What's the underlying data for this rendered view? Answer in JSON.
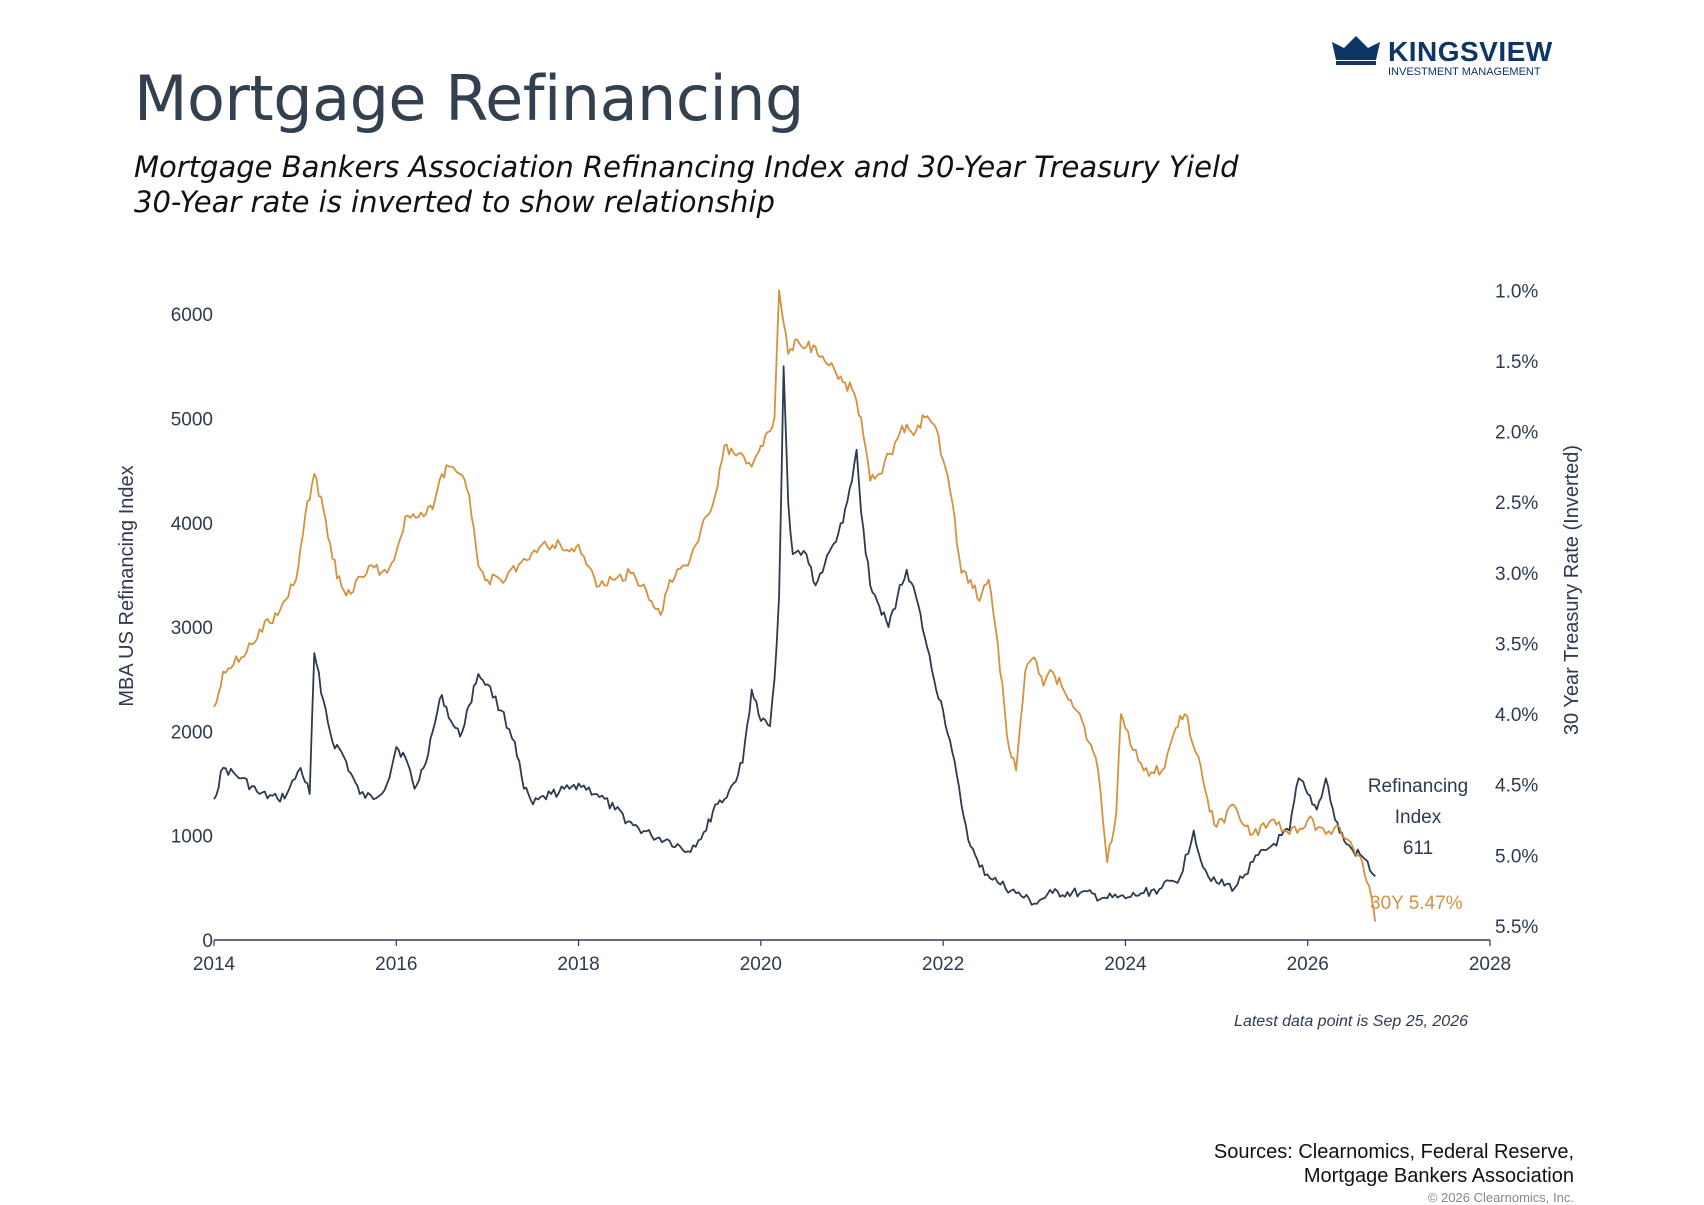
{
  "header": {
    "title": "Mortgage Refinancing",
    "subtitle_line1": "Mortgage Bankers Association Refinancing Index and 30-Year Treasury Yield",
    "subtitle_line2": "30-Year rate is inverted to show relationship"
  },
  "logo": {
    "name": "KINGSVIEW",
    "tagline": "INVESTMENT MANAGEMENT",
    "icon": "crown-icon",
    "color": "#0d3566"
  },
  "footer": {
    "latest": "Latest data point is Sep 25, 2026",
    "sources_line1": "Sources: Clearnomics, Federal Reserve,",
    "sources_line2": "Mortgage Bankers Association",
    "copyright": "© 2026 Clearnomics, Inc."
  },
  "chart_data": {
    "type": "line",
    "title": "Mortgage Refinancing",
    "xlim": [
      2014,
      2028
    ],
    "x_ticks": [
      "2014",
      "2016",
      "2018",
      "2020",
      "2022",
      "2024",
      "2026",
      "2028"
    ],
    "y_left": {
      "label": "MBA US Refinancing Index",
      "range": [
        0,
        6500
      ],
      "ticks": [
        "0",
        "1000",
        "2000",
        "3000",
        "4000",
        "5000",
        "6000"
      ]
    },
    "y_right": {
      "label": "30 Year Treasury Rate (Inverted)",
      "range": [
        0.8,
        5.6
      ],
      "inverted": true,
      "ticks": [
        "1.0%",
        "1.5%",
        "2.0%",
        "2.5%",
        "3.0%",
        "3.5%",
        "4.0%",
        "4.5%",
        "5.0%",
        "5.5%"
      ]
    },
    "grid": false,
    "series": [
      {
        "name": "Refinancing Index",
        "axis": "left",
        "color": "#2e3b4e",
        "end_label_lines": [
          "Refinancing",
          "Index",
          "611"
        ],
        "points": [
          [
            2014.0,
            1350
          ],
          [
            2014.1,
            1650
          ],
          [
            2014.3,
            1550
          ],
          [
            2014.5,
            1400
          ],
          [
            2014.7,
            1350
          ],
          [
            2014.8,
            1400
          ],
          [
            2014.95,
            1650
          ],
          [
            2015.05,
            1400
          ],
          [
            2015.1,
            2750
          ],
          [
            2015.2,
            2300
          ],
          [
            2015.3,
            1900
          ],
          [
            2015.4,
            1800
          ],
          [
            2015.5,
            1600
          ],
          [
            2015.6,
            1400
          ],
          [
            2015.75,
            1350
          ],
          [
            2015.9,
            1500
          ],
          [
            2016.0,
            1850
          ],
          [
            2016.1,
            1750
          ],
          [
            2016.2,
            1450
          ],
          [
            2016.3,
            1650
          ],
          [
            2016.4,
            2000
          ],
          [
            2016.5,
            2350
          ],
          [
            2016.6,
            2100
          ],
          [
            2016.7,
            1950
          ],
          [
            2016.8,
            2250
          ],
          [
            2016.9,
            2550
          ],
          [
            2017.0,
            2450
          ],
          [
            2017.15,
            2200
          ],
          [
            2017.3,
            1900
          ],
          [
            2017.4,
            1450
          ],
          [
            2017.5,
            1300
          ],
          [
            2017.7,
            1400
          ],
          [
            2017.9,
            1450
          ],
          [
            2018.0,
            1500
          ],
          [
            2018.2,
            1400
          ],
          [
            2018.4,
            1250
          ],
          [
            2018.6,
            1100
          ],
          [
            2018.8,
            1000
          ],
          [
            2019.0,
            950
          ],
          [
            2019.2,
            850
          ],
          [
            2019.4,
            1050
          ],
          [
            2019.5,
            1300
          ],
          [
            2019.6,
            1350
          ],
          [
            2019.7,
            1500
          ],
          [
            2019.8,
            1700
          ],
          [
            2019.9,
            2400
          ],
          [
            2020.0,
            2100
          ],
          [
            2020.1,
            2050
          ],
          [
            2020.15,
            2500
          ],
          [
            2020.2,
            3300
          ],
          [
            2020.25,
            5500
          ],
          [
            2020.3,
            4200
          ],
          [
            2020.35,
            3700
          ],
          [
            2020.5,
            3700
          ],
          [
            2020.6,
            3400
          ],
          [
            2020.7,
            3600
          ],
          [
            2020.8,
            3800
          ],
          [
            2020.9,
            4000
          ],
          [
            2021.0,
            4400
          ],
          [
            2021.05,
            4700
          ],
          [
            2021.1,
            4100
          ],
          [
            2021.2,
            3400
          ],
          [
            2021.3,
            3200
          ],
          [
            2021.4,
            3000
          ],
          [
            2021.5,
            3300
          ],
          [
            2021.6,
            3550
          ],
          [
            2021.7,
            3300
          ],
          [
            2021.8,
            2900
          ],
          [
            2021.9,
            2500
          ],
          [
            2022.0,
            2200
          ],
          [
            2022.1,
            1800
          ],
          [
            2022.2,
            1300
          ],
          [
            2022.3,
            900
          ],
          [
            2022.4,
            700
          ],
          [
            2022.6,
            550
          ],
          [
            2022.8,
            450
          ],
          [
            2023.0,
            350
          ],
          [
            2023.2,
            450
          ],
          [
            2023.5,
            450
          ],
          [
            2023.8,
            400
          ],
          [
            2024.0,
            400
          ],
          [
            2024.2,
            450
          ],
          [
            2024.4,
            500
          ],
          [
            2024.6,
            600
          ],
          [
            2024.75,
            1050
          ],
          [
            2024.85,
            700
          ],
          [
            2025.0,
            550
          ],
          [
            2025.2,
            500
          ],
          [
            2025.4,
            750
          ],
          [
            2025.6,
            900
          ],
          [
            2025.8,
            1050
          ],
          [
            2025.9,
            1550
          ],
          [
            2026.0,
            1400
          ],
          [
            2026.1,
            1250
          ],
          [
            2026.2,
            1550
          ],
          [
            2026.3,
            1150
          ],
          [
            2026.4,
            950
          ],
          [
            2026.5,
            850
          ],
          [
            2026.6,
            800
          ],
          [
            2026.74,
            611
          ]
        ]
      },
      {
        "name": "30Y",
        "axis": "right",
        "color": "#d4923f",
        "end_label": "30Y 5.47%",
        "points": [
          [
            2014.0,
            3.95
          ],
          [
            2014.1,
            3.7
          ],
          [
            2014.3,
            3.6
          ],
          [
            2014.5,
            3.4
          ],
          [
            2014.7,
            3.3
          ],
          [
            2014.9,
            3.05
          ],
          [
            2015.0,
            2.6
          ],
          [
            2015.1,
            2.3
          ],
          [
            2015.2,
            2.55
          ],
          [
            2015.3,
            2.9
          ],
          [
            2015.4,
            3.1
          ],
          [
            2015.5,
            3.15
          ],
          [
            2015.7,
            2.95
          ],
          [
            2015.9,
            3.0
          ],
          [
            2016.0,
            2.85
          ],
          [
            2016.1,
            2.6
          ],
          [
            2016.3,
            2.6
          ],
          [
            2016.4,
            2.55
          ],
          [
            2016.5,
            2.3
          ],
          [
            2016.6,
            2.25
          ],
          [
            2016.7,
            2.3
          ],
          [
            2016.8,
            2.45
          ],
          [
            2016.9,
            2.95
          ],
          [
            2017.0,
            3.05
          ],
          [
            2017.2,
            3.05
          ],
          [
            2017.4,
            2.9
          ],
          [
            2017.6,
            2.8
          ],
          [
            2017.8,
            2.8
          ],
          [
            2017.9,
            2.85
          ],
          [
            2018.0,
            2.8
          ],
          [
            2018.2,
            3.1
          ],
          [
            2018.4,
            3.05
          ],
          [
            2018.6,
            3.0
          ],
          [
            2018.8,
            3.2
          ],
          [
            2018.9,
            3.3
          ],
          [
            2019.0,
            3.05
          ],
          [
            2019.2,
            2.95
          ],
          [
            2019.4,
            2.6
          ],
          [
            2019.5,
            2.45
          ],
          [
            2019.6,
            2.1
          ],
          [
            2019.7,
            2.15
          ],
          [
            2019.9,
            2.25
          ],
          [
            2020.0,
            2.1
          ],
          [
            2020.1,
            2.0
          ],
          [
            2020.15,
            1.9
          ],
          [
            2020.2,
            1.0
          ],
          [
            2020.3,
            1.45
          ],
          [
            2020.4,
            1.35
          ],
          [
            2020.5,
            1.4
          ],
          [
            2020.6,
            1.4
          ],
          [
            2020.7,
            1.5
          ],
          [
            2020.8,
            1.55
          ],
          [
            2020.9,
            1.65
          ],
          [
            2021.0,
            1.7
          ],
          [
            2021.1,
            1.9
          ],
          [
            2021.2,
            2.35
          ],
          [
            2021.3,
            2.3
          ],
          [
            2021.5,
            2.05
          ],
          [
            2021.6,
            1.95
          ],
          [
            2021.7,
            2.0
          ],
          [
            2021.8,
            1.9
          ],
          [
            2021.9,
            1.95
          ],
          [
            2022.0,
            2.2
          ],
          [
            2022.1,
            2.5
          ],
          [
            2022.2,
            3.0
          ],
          [
            2022.3,
            3.05
          ],
          [
            2022.4,
            3.2
          ],
          [
            2022.5,
            3.05
          ],
          [
            2022.6,
            3.5
          ],
          [
            2022.7,
            4.15
          ],
          [
            2022.8,
            4.4
          ],
          [
            2022.9,
            3.7
          ],
          [
            2023.0,
            3.6
          ],
          [
            2023.1,
            3.8
          ],
          [
            2023.2,
            3.7
          ],
          [
            2023.3,
            3.8
          ],
          [
            2023.4,
            3.9
          ],
          [
            2023.5,
            4.0
          ],
          [
            2023.6,
            4.2
          ],
          [
            2023.7,
            4.4
          ],
          [
            2023.8,
            5.05
          ],
          [
            2023.9,
            4.7
          ],
          [
            2023.95,
            4.0
          ],
          [
            2024.0,
            4.1
          ],
          [
            2024.2,
            4.4
          ],
          [
            2024.4,
            4.4
          ],
          [
            2024.55,
            4.1
          ],
          [
            2024.65,
            4.0
          ],
          [
            2024.8,
            4.3
          ],
          [
            2024.9,
            4.6
          ],
          [
            2025.0,
            4.8
          ],
          [
            2025.2,
            4.65
          ],
          [
            2025.4,
            4.85
          ],
          [
            2025.6,
            4.75
          ],
          [
            2025.8,
            4.85
          ],
          [
            2026.0,
            4.75
          ],
          [
            2026.2,
            4.85
          ],
          [
            2026.35,
            4.8
          ],
          [
            2026.5,
            4.95
          ],
          [
            2026.6,
            5.05
          ],
          [
            2026.7,
            5.3
          ],
          [
            2026.74,
            5.47
          ]
        ]
      }
    ],
    "annotation": "Latest data point is Sep 25, 2026"
  }
}
